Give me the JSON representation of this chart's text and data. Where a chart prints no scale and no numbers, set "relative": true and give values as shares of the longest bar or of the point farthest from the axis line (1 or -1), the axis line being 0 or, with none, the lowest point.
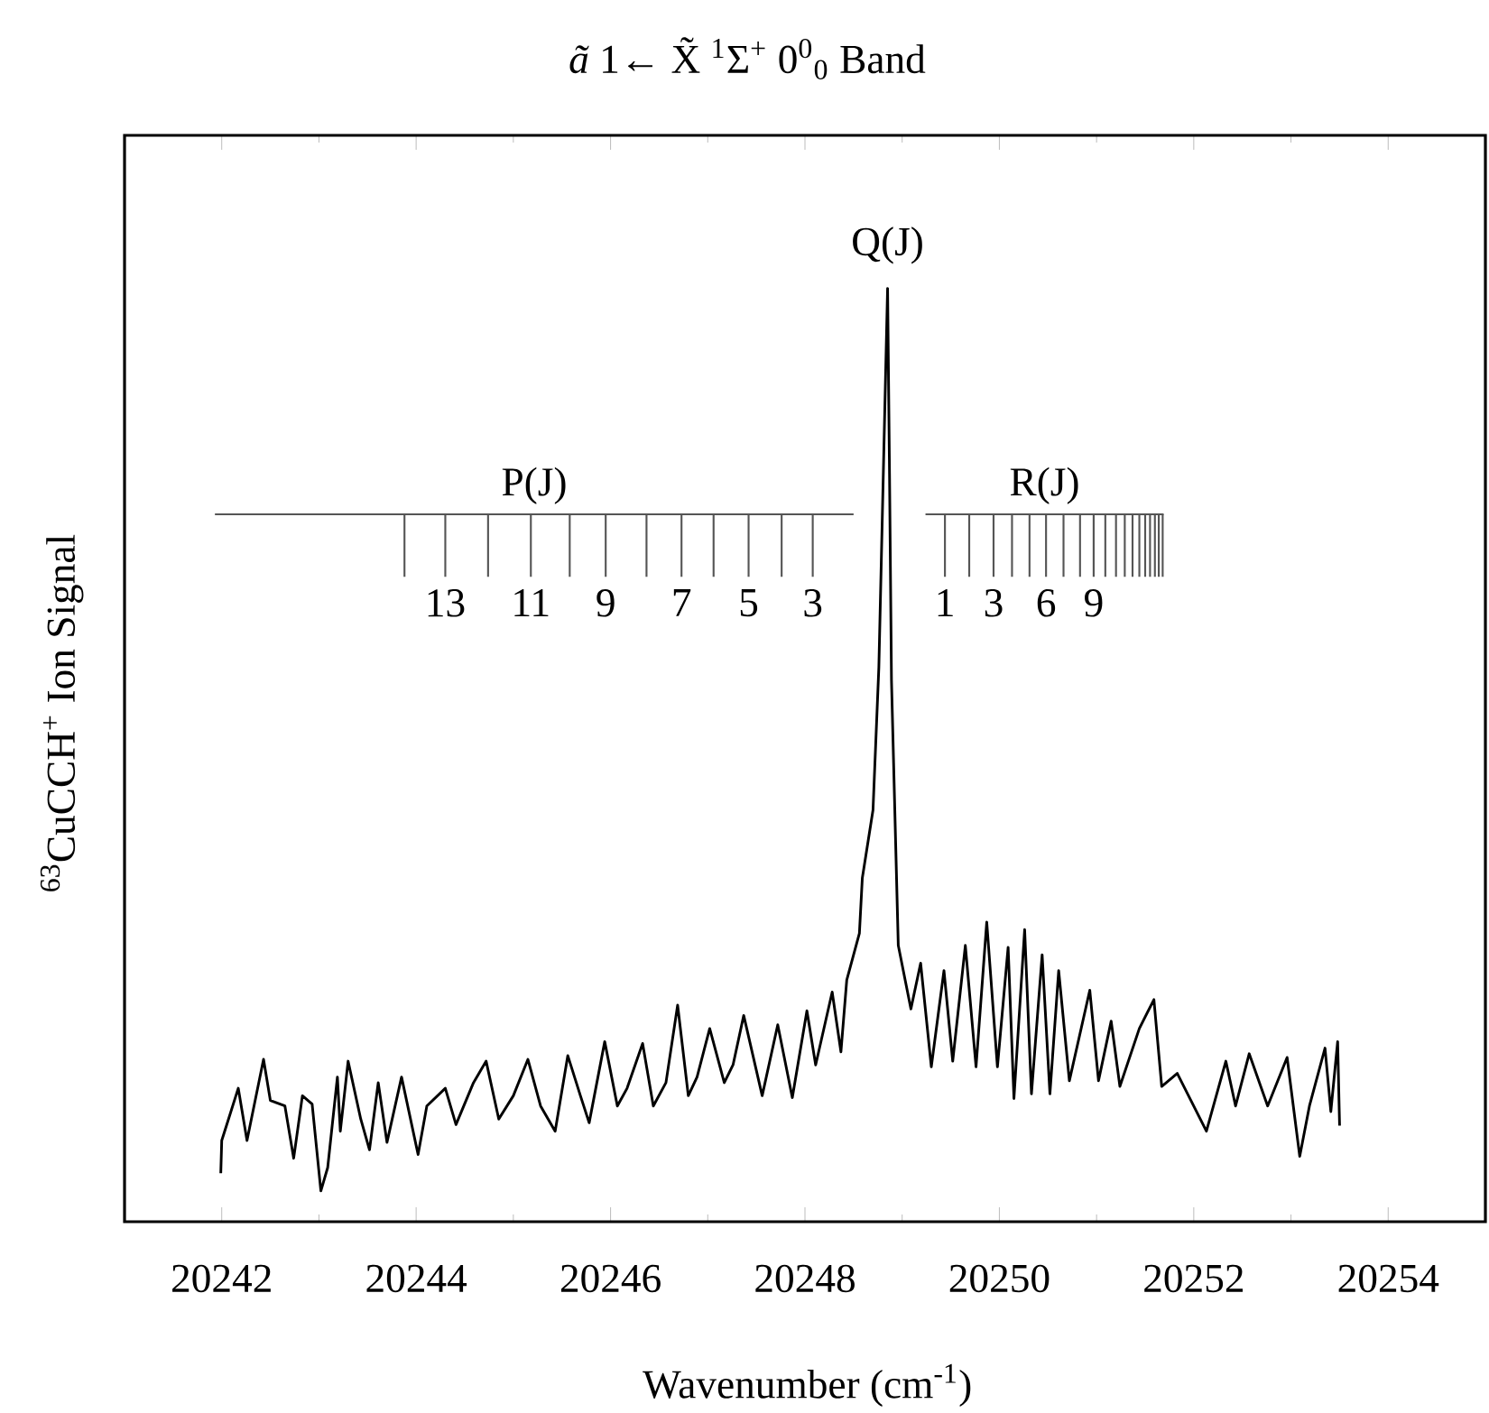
{
  "chart_data": {
    "type": "line",
    "relative": true,
    "title": "*ã* 1← X̃ $^{1}$Σ$^{+}$  0$^{0}$$_{0}$ Band",
    "xlabel": "Wavenumber (cm$^{-1}$)",
    "ylabel": "$^{63}$CuCCH$^{+}$ Ion Signal",
    "xlim": [
      20241,
      20255
    ],
    "xticks": [
      20242,
      {
        "value": 20243,
        "label": null
      },
      20244,
      {
        "value": 20245,
        "label": null
      },
      20246,
      {
        "value": 20247,
        "label": null
      },
      20248,
      {
        "value": 20249,
        "label": null
      },
      20250,
      {
        "value": 20251,
        "label": null
      },
      20252,
      {
        "value": 20253,
        "label": null
      },
      20254
    ],
    "series": [
      {
        "name": "Q(J)",
        "color": "#000000",
        "x": [
          20241.99,
          20242.0,
          20242.07,
          20242.17,
          20242.26,
          20242.43,
          20242.5,
          20242.65,
          20242.74,
          20242.83,
          20242.93,
          20243.02,
          20243.09,
          20243.19,
          20243.22,
          20243.3,
          20243.43,
          20243.52,
          20243.61,
          20243.7,
          20243.85,
          20244.02,
          20244.11,
          20244.3,
          20244.41,
          20244.59,
          20244.72,
          20244.85,
          20245.0,
          20245.15,
          20245.28,
          20245.43,
          20245.56,
          20245.69,
          20245.78,
          20245.94,
          20246.07,
          20246.17,
          20246.33,
          20246.44,
          20246.57,
          20246.69,
          20246.8,
          20246.89,
          20247.02,
          20247.17,
          20247.26,
          20247.37,
          20247.56,
          20247.72,
          20247.87,
          20248.02,
          20248.11,
          20248.28,
          20248.37,
          20248.43,
          20248.56,
          20248.59,
          20248.7,
          20248.76,
          20248.85,
          20248.87,
          20248.89,
          20248.96,
          20249.09,
          20249.19,
          20249.3,
          20249.43,
          20249.52,
          20249.65,
          20249.76,
          20249.87,
          20249.98,
          20250.09,
          20250.15,
          20250.26,
          20250.33,
          20250.44,
          20250.52,
          20250.61,
          20250.72,
          20250.93,
          20251.02,
          20251.15,
          20251.24,
          20251.44,
          20251.59,
          20251.67,
          20251.83,
          20252.13,
          20252.33,
          20252.43,
          20252.57,
          20252.76,
          20252.96,
          20253.09,
          20253.19,
          20253.35,
          20253.41,
          20253.48,
          20253.5
        ],
        "values": [
          0.052,
          0.087,
          0.11,
          0.143,
          0.087,
          0.174,
          0.13,
          0.124,
          0.068,
          0.135,
          0.126,
          0.033,
          0.058,
          0.155,
          0.097,
          0.172,
          0.11,
          0.077,
          0.149,
          0.085,
          0.155,
          0.072,
          0.124,
          0.143,
          0.104,
          0.149,
          0.172,
          0.11,
          0.135,
          0.174,
          0.124,
          0.097,
          0.178,
          0.135,
          0.106,
          0.193,
          0.124,
          0.143,
          0.191,
          0.124,
          0.149,
          0.232,
          0.135,
          0.155,
          0.207,
          0.149,
          0.168,
          0.221,
          0.135,
          0.211,
          0.133,
          0.226,
          0.168,
          0.246,
          0.182,
          0.259,
          0.309,
          0.368,
          0.441,
          0.594,
          1.0,
          0.801,
          0.58,
          0.296,
          0.228,
          0.277,
          0.166,
          0.269,
          0.172,
          0.296,
          0.166,
          0.321,
          0.166,
          0.294,
          0.132,
          0.313,
          0.137,
          0.286,
          0.137,
          0.269,
          0.151,
          0.248,
          0.151,
          0.215,
          0.145,
          0.207,
          0.238,
          0.145,
          0.159,
          0.097,
          0.172,
          0.124,
          0.18,
          0.124,
          0.176,
          0.07,
          0.124,
          0.186,
          0.118,
          0.193,
          0.103
        ]
      },
      {
        "name": "P(J)",
        "color": "#555555",
        "x": [
          20241.93,
          20248.5
        ],
        "values": [
          0.758,
          0.758
        ]
      },
      {
        "color": "#555555",
        "x": [
          20243.88,
          20243.88
        ],
        "values": [
          0.758,
          0.691
        ]
      },
      {
        "color": "#555555",
        "x": [
          20244.3,
          20244.3
        ],
        "values": [
          0.758,
          0.691
        ]
      },
      {
        "color": "#555555",
        "x": [
          20244.74,
          20244.74
        ],
        "values": [
          0.758,
          0.691
        ]
      },
      {
        "color": "#555555",
        "x": [
          20245.18,
          20245.18
        ],
        "values": [
          0.758,
          0.691
        ]
      },
      {
        "color": "#555555",
        "x": [
          20245.58,
          20245.58
        ],
        "values": [
          0.758,
          0.691
        ]
      },
      {
        "color": "#555555",
        "x": [
          20245.95,
          20245.95
        ],
        "values": [
          0.758,
          0.691
        ]
      },
      {
        "color": "#555555",
        "x": [
          20246.37,
          20246.37
        ],
        "values": [
          0.758,
          0.691
        ]
      },
      {
        "color": "#555555",
        "x": [
          20246.73,
          20246.73
        ],
        "values": [
          0.758,
          0.691
        ]
      },
      {
        "color": "#555555",
        "x": [
          20247.06,
          20247.06
        ],
        "values": [
          0.758,
          0.691
        ]
      },
      {
        "color": "#555555",
        "x": [
          20247.42,
          20247.42
        ],
        "values": [
          0.758,
          0.691
        ]
      },
      {
        "color": "#555555",
        "x": [
          20247.76,
          20247.76
        ],
        "values": [
          0.758,
          0.691
        ]
      },
      {
        "color": "#555555",
        "x": [
          20248.08,
          20248.08
        ],
        "values": [
          0.758,
          0.691
        ]
      },
      {
        "name": "R(J)",
        "color": "#555555",
        "x": [
          20249.24,
          20251.69
        ],
        "values": [
          0.758,
          0.758
        ]
      },
      {
        "color": "#555555",
        "x": [
          20249.44,
          20249.44
        ],
        "values": [
          0.758,
          0.691
        ]
      },
      {
        "color": "#555555",
        "x": [
          20249.69,
          20249.69
        ],
        "values": [
          0.758,
          0.691
        ]
      },
      {
        "color": "#555555",
        "x": [
          20249.94,
          20249.94
        ],
        "values": [
          0.758,
          0.691
        ]
      },
      {
        "color": "#555555",
        "x": [
          20250.13,
          20250.13
        ],
        "values": [
          0.758,
          0.691
        ]
      },
      {
        "color": "#555555",
        "x": [
          20250.31,
          20250.31
        ],
        "values": [
          0.758,
          0.691
        ]
      },
      {
        "color": "#555555",
        "x": [
          20250.48,
          20250.48
        ],
        "values": [
          0.758,
          0.691
        ]
      },
      {
        "color": "#555555",
        "x": [
          20250.66,
          20250.66
        ],
        "values": [
          0.758,
          0.691
        ]
      },
      {
        "color": "#555555",
        "x": [
          20250.83,
          20250.83
        ],
        "values": [
          0.758,
          0.691
        ]
      },
      {
        "color": "#555555",
        "x": [
          20250.97,
          20250.97
        ],
        "values": [
          0.758,
          0.691
        ]
      },
      {
        "color": "#555555",
        "x": [
          20251.09,
          20251.09
        ],
        "values": [
          0.758,
          0.691
        ]
      },
      {
        "color": "#555555",
        "x": [
          20251.2,
          20251.2
        ],
        "values": [
          0.758,
          0.691
        ]
      },
      {
        "color": "#555555",
        "x": [
          20251.29,
          20251.29
        ],
        "values": [
          0.758,
          0.691
        ]
      },
      {
        "color": "#555555",
        "x": [
          20251.37,
          20251.37
        ],
        "values": [
          0.758,
          0.691
        ]
      },
      {
        "color": "#555555",
        "x": [
          20251.44,
          20251.44
        ],
        "values": [
          0.758,
          0.691
        ]
      },
      {
        "color": "#555555",
        "x": [
          20251.5,
          20251.5
        ],
        "values": [
          0.758,
          0.691
        ]
      },
      {
        "color": "#555555",
        "x": [
          20251.55,
          20251.55
        ],
        "values": [
          0.758,
          0.691
        ]
      },
      {
        "color": "#555555",
        "x": [
          20251.6,
          20251.6
        ],
        "values": [
          0.758,
          0.691
        ]
      },
      {
        "color": "#555555",
        "x": [
          20251.64,
          20251.64
        ],
        "values": [
          0.758,
          0.691
        ]
      },
      {
        "color": "#555555",
        "x": [
          20251.68,
          20251.68
        ],
        "values": [
          0.758,
          0.691
        ]
      }
    ],
    "annotations": [
      {
        "text": "13",
        "x": 20244.3,
        "y": 0.691
      },
      {
        "text": "11",
        "x": 20245.18,
        "y": 0.691
      },
      {
        "text": "9",
        "x": 20245.95,
        "y": 0.691
      },
      {
        "text": "7",
        "x": 20246.73,
        "y": 0.691
      },
      {
        "text": "5",
        "x": 20247.42,
        "y": 0.691
      },
      {
        "text": "3",
        "x": 20248.08,
        "y": 0.691
      },
      {
        "text": "1",
        "x": 20249.44,
        "y": 0.691
      },
      {
        "text": "3",
        "x": 20249.94,
        "y": 0.691
      },
      {
        "text": "6",
        "x": 20250.48,
        "y": 0.691
      },
      {
        "text": "9",
        "x": 20250.97,
        "y": 0.691
      }
    ]
  }
}
